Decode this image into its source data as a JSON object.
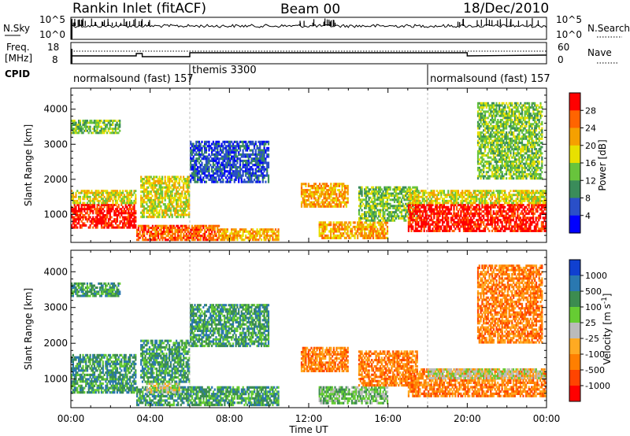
{
  "header": {
    "station": "Rankin Inlet (fitACF)",
    "beam": "Beam 00",
    "date": "18/Dec/2010"
  },
  "noise_panel": {
    "left_label": "N.Sky",
    "right_label": "N.Search",
    "left_ticks": [
      "10^5",
      "10^0"
    ],
    "right_ticks": [
      "10^5",
      "10^0"
    ]
  },
  "freq_panel": {
    "left_label_1": "Freq.",
    "left_label_2": "[MHz]",
    "right_label": "Nave",
    "left_ticks": [
      "18",
      "8"
    ],
    "right_ticks": [
      "60",
      "0"
    ]
  },
  "cpid": {
    "label": "CPID",
    "segments": [
      {
        "name": "normalsound (fast) 157",
        "start_hour": 0,
        "end_hour": 6
      },
      {
        "name": "themis 3300",
        "start_hour": 6,
        "end_hour": 18
      },
      {
        "name": "normalsound (fast) 157",
        "start_hour": 18,
        "end_hour": 24
      }
    ]
  },
  "colors": {
    "power_scale": [
      "#0000ff",
      "#2a4fc8",
      "#3a8c5a",
      "#68c43c",
      "#e8e000",
      "#f5a000",
      "#ff6400",
      "#ff0000"
    ],
    "velocity_scale": [
      "#1040d0",
      "#2a78b0",
      "#3c8c50",
      "#66cc33",
      "#bbbbbb",
      "#ffaa22",
      "#ff7f00",
      "#ff4400",
      "#ff0000"
    ]
  },
  "chart_data": [
    {
      "type": "heatmap",
      "name": "power",
      "ylabel": "Slant Range [km]",
      "ylim": [
        200,
        4600
      ],
      "yticks": [
        1000,
        2000,
        3000,
        4000
      ],
      "colorbar": {
        "label": "Power [dB]",
        "range": [
          0,
          32
        ],
        "ticks": [
          "4",
          "8",
          "12",
          "16",
          "20",
          "24",
          "28"
        ]
      },
      "regions": [
        {
          "t0": 0.0,
          "t1": 3.3,
          "r0": 600,
          "r1": 1300,
          "level": 7
        },
        {
          "t0": 0.0,
          "t1": 3.3,
          "r0": 1300,
          "r1": 1700,
          "level": 4
        },
        {
          "t0": 3.3,
          "t1": 7.5,
          "r0": 250,
          "r1": 700,
          "level": 6
        },
        {
          "t0": 7.5,
          "t1": 10.5,
          "r0": 250,
          "r1": 600,
          "level": 5
        },
        {
          "t0": 3.5,
          "t1": 6.0,
          "r0": 900,
          "r1": 2100,
          "level": 4
        },
        {
          "t0": 11.6,
          "t1": 14.0,
          "r0": 1200,
          "r1": 1900,
          "level": 5
        },
        {
          "t0": 12.5,
          "t1": 16.0,
          "r0": 300,
          "r1": 800,
          "level": 5
        },
        {
          "t0": 14.5,
          "t1": 17.5,
          "r0": 800,
          "r1": 1800,
          "level": 3
        },
        {
          "t0": 17.0,
          "t1": 24.0,
          "r0": 500,
          "r1": 1300,
          "level": 7
        },
        {
          "t0": 17.0,
          "t1": 24.0,
          "r0": 1300,
          "r1": 1700,
          "level": 4
        },
        {
          "t0": 0.0,
          "t1": 2.5,
          "r0": 3300,
          "r1": 3700,
          "level": 3
        },
        {
          "t0": 20.5,
          "t1": 23.8,
          "r0": 2000,
          "r1": 4200,
          "level": 3
        },
        {
          "t0": 6.0,
          "t1": 10.0,
          "r0": 1900,
          "r1": 3100,
          "level": 1
        }
      ]
    },
    {
      "type": "heatmap",
      "name": "velocity",
      "ylabel": "Slant Range [km]",
      "ylim": [
        200,
        4600
      ],
      "yticks": [
        1000,
        2000,
        3000,
        4000
      ],
      "colorbar": {
        "label": "Velocity [m s^-1]",
        "ticks": [
          "1000",
          "500",
          "100",
          "25",
          "-25",
          "-100",
          "-500",
          "-1000"
        ]
      },
      "regions": [
        {
          "t0": 0.0,
          "t1": 3.3,
          "r0": 600,
          "r1": 1700,
          "level": 2
        },
        {
          "t0": 3.3,
          "t1": 10.5,
          "r0": 250,
          "r1": 800,
          "level": 2
        },
        {
          "t0": 3.8,
          "t1": 5.5,
          "r0": 600,
          "r1": 900,
          "level": 4
        },
        {
          "t0": 3.5,
          "t1": 6.0,
          "r0": 900,
          "r1": 2100,
          "level": 2
        },
        {
          "t0": 11.6,
          "t1": 14.0,
          "r0": 1200,
          "r1": 1900,
          "level": 6
        },
        {
          "t0": 12.5,
          "t1": 16.0,
          "r0": 300,
          "r1": 800,
          "level": 3
        },
        {
          "t0": 14.5,
          "t1": 17.5,
          "r0": 800,
          "r1": 1800,
          "level": 6
        },
        {
          "t0": 17.0,
          "t1": 24.0,
          "r0": 500,
          "r1": 1300,
          "level": 6
        },
        {
          "t0": 18.0,
          "t1": 24.0,
          "r0": 1000,
          "r1": 1300,
          "level": 4
        },
        {
          "t0": 0.0,
          "t1": 2.5,
          "r0": 3300,
          "r1": 3700,
          "level": 2
        },
        {
          "t0": 20.5,
          "t1": 23.8,
          "r0": 2000,
          "r1": 4200,
          "level": 6
        },
        {
          "t0": 6.0,
          "t1": 10.0,
          "r0": 1900,
          "r1": 3100,
          "level": 2
        }
      ]
    }
  ],
  "time_axis": {
    "label": "Time UT",
    "tick_labels": [
      "00:00",
      "04:00",
      "08:00",
      "12:00",
      "16:00",
      "20:00",
      "00:00"
    ],
    "tick_hours": [
      0,
      4,
      8,
      12,
      16,
      20,
      24
    ]
  }
}
